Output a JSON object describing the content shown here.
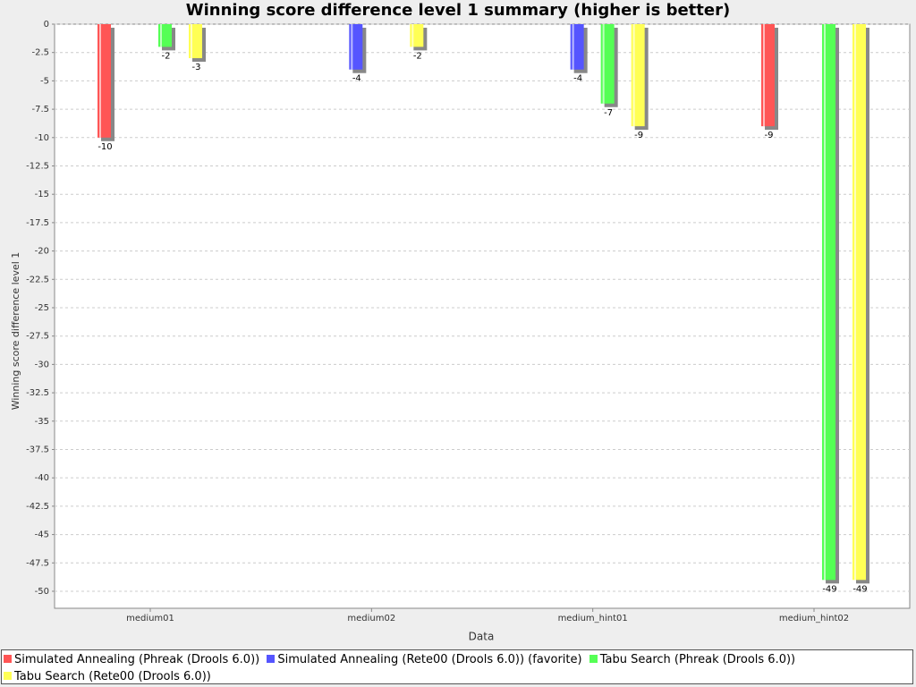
{
  "chart_data": {
    "type": "bar",
    "title": "Winning score difference level 1 summary (higher is better)",
    "x_label": "Data",
    "y_label": "Winning score difference level 1",
    "categories": [
      "medium01",
      "medium02",
      "medium_hint01",
      "medium_hint02"
    ],
    "series": [
      {
        "name": "Simulated Annealing (Phreak (Drools 6.0))",
        "color": "#ff5555",
        "values": [
          -10,
          null,
          null,
          -9
        ]
      },
      {
        "name": "Simulated Annealing (Rete00 (Drools 6.0)) (favorite)",
        "color": "#5555ff",
        "values": [
          null,
          -4,
          -4,
          null
        ]
      },
      {
        "name": "Tabu Search (Phreak (Drools 6.0))",
        "color": "#55ff55",
        "values": [
          -2,
          null,
          -7,
          -49
        ]
      },
      {
        "name": "Tabu Search (Rete00 (Drools 6.0))",
        "color": "#ffff55",
        "values": [
          -3,
          -2,
          -9,
          -49
        ]
      }
    ],
    "ylim": [
      -51.5,
      0
    ],
    "yticks": [
      0,
      -2.5,
      -5,
      -7.5,
      -10,
      -12.5,
      -15,
      -17.5,
      -20,
      -22.5,
      -25,
      -27.5,
      -30,
      -32.5,
      -35,
      -37.5,
      -40,
      -42.5,
      -45,
      -47.5,
      -50
    ],
    "grid": true,
    "legend": "bottom"
  }
}
